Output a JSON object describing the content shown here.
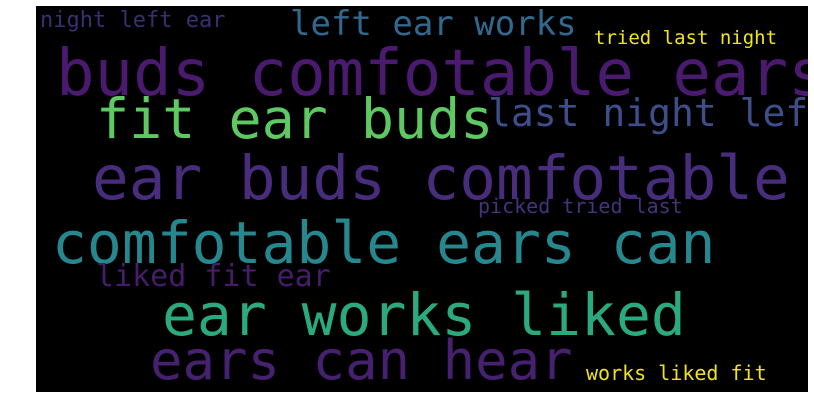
{
  "word_cloud": {
    "background": "#000000",
    "phrases": {
      "night_left_ear": {
        "text": "night left ear",
        "color": "#3b2f72"
      },
      "left_ear_works": {
        "text": "left ear works",
        "color": "#31688e"
      },
      "tried_last_night": {
        "text": "tried last night",
        "color": "#f2e41f"
      },
      "buds_comfotable_ears": {
        "text": "buds comfotable ears",
        "color": "#4a1a6e"
      },
      "fit_ear_buds": {
        "text": "fit ear buds",
        "color": "#5ec962"
      },
      "last_night_left": {
        "text": "last night left",
        "color": "#3e4e8a"
      },
      "ear_buds_comfotable": {
        "text": "ear buds comfotable",
        "color": "#472d7b"
      },
      "picked_tried_last": {
        "text": "picked tried last",
        "color": "#45337d"
      },
      "comfotable_ears_can": {
        "text": "comfotable ears can",
        "color": "#26888e"
      },
      "liked_fit_ear": {
        "text": "liked fit ear",
        "color": "#471d6b"
      },
      "ear_works_liked": {
        "text": "ear works liked",
        "color": "#2aaa7e"
      },
      "ears_can_hear": {
        "text": "ears can hear",
        "color": "#46216f"
      },
      "works_liked_fit": {
        "text": "works liked fit",
        "color": "#f0e11e"
      }
    }
  }
}
